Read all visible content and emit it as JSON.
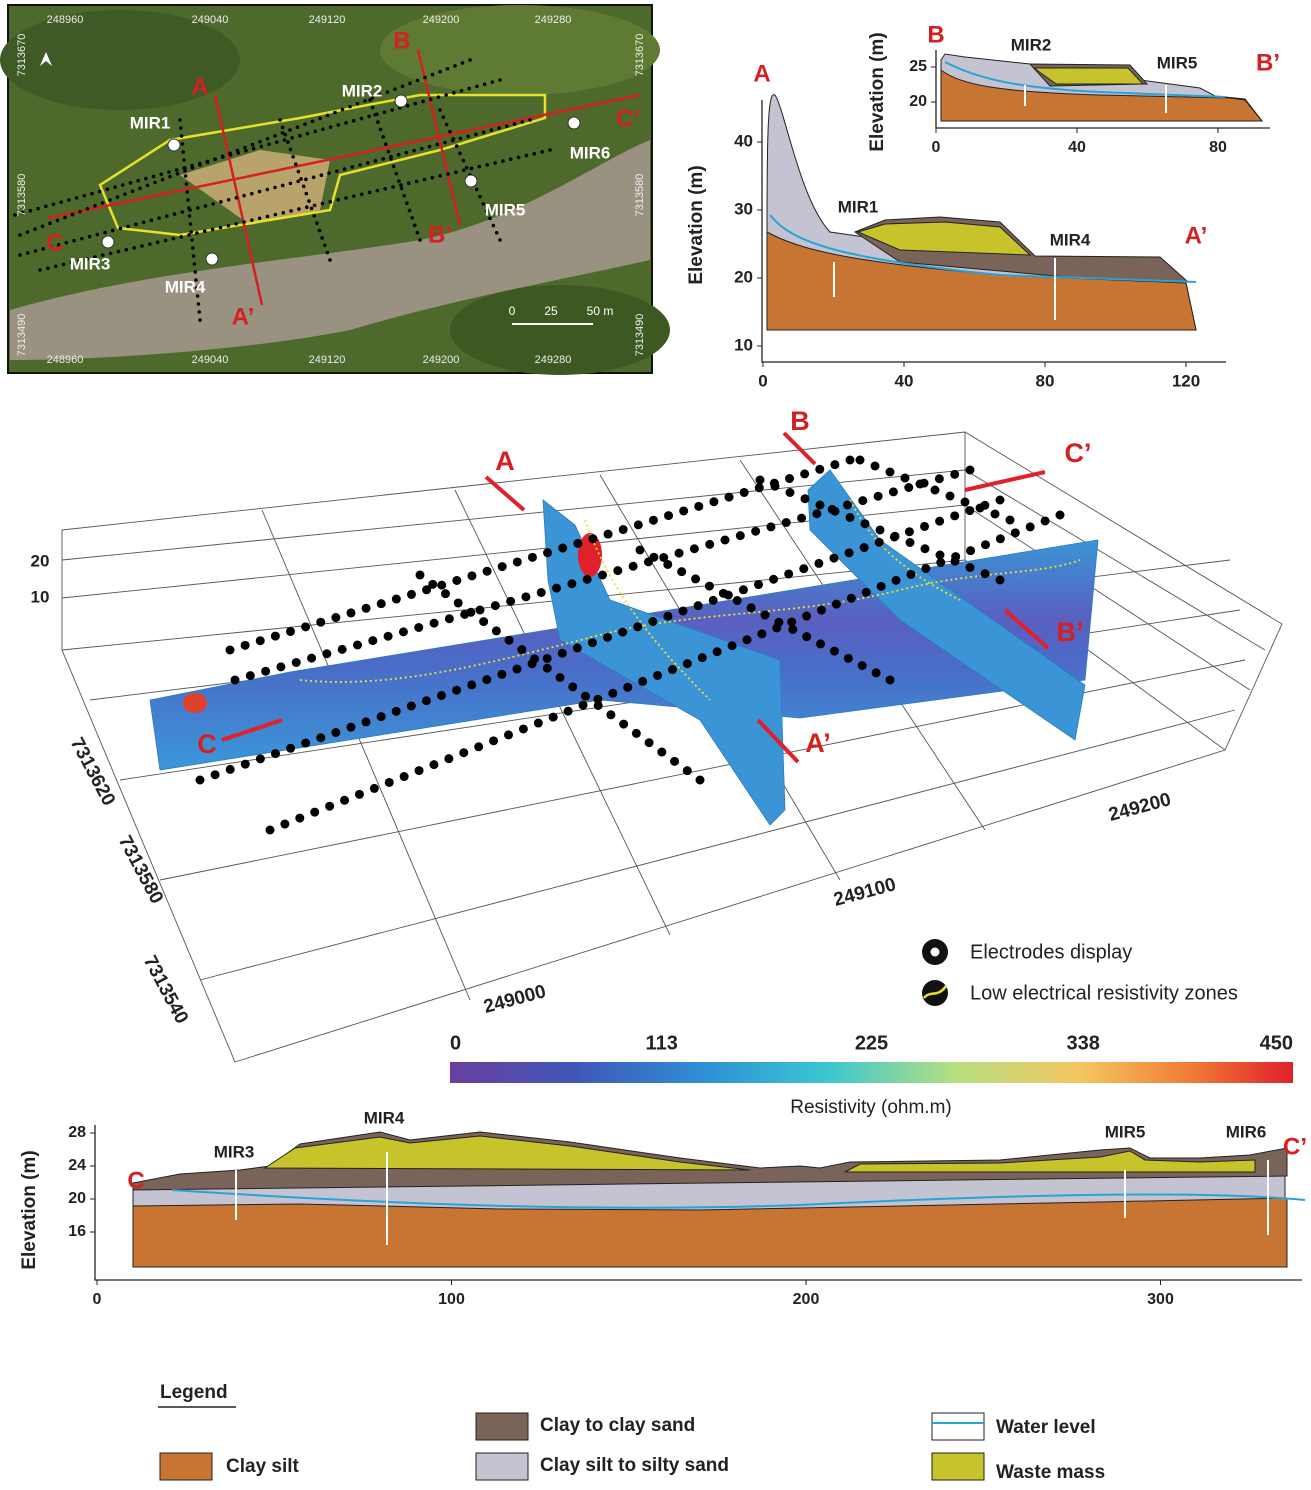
{
  "map": {
    "x_labels": [
      248960,
      249040,
      249120,
      249200,
      249280
    ],
    "y_labels": [
      7313670,
      7313580,
      7313490
    ],
    "sections": [
      "A",
      "A’",
      "B",
      "B’",
      "C",
      "C’"
    ],
    "points": [
      "MIR1",
      "MIR2",
      "MIR3",
      "MIR4",
      "MIR5",
      "MIR6"
    ],
    "scale": [
      "0",
      "25",
      "50 m"
    ]
  },
  "profile_aa": {
    "y_label": "Elevation (m)",
    "start": "A",
    "end": "A’",
    "points": [
      "MIR1",
      "MIR4"
    ],
    "xticks": [
      0,
      40,
      80,
      120
    ],
    "yticks": [
      10,
      20,
      30,
      40
    ]
  },
  "profile_bb": {
    "y_label": "Elevation (m)",
    "start": "B",
    "end": "B’",
    "points": [
      "MIR2",
      "MIR5"
    ],
    "xticks": [
      0,
      40,
      80
    ],
    "yticks": [
      20,
      25
    ]
  },
  "model_3d": {
    "sections": [
      "A",
      "B",
      "C’",
      "B’",
      "A’",
      "C"
    ],
    "z_ticks": [
      20,
      10
    ],
    "northing_ticks": [
      7313620,
      7313580,
      7313540
    ],
    "easting_ticks": [
      249000,
      249100,
      249200
    ],
    "legend": [
      "Electrodes display",
      "Low electrical resistivity zones"
    ],
    "colorbar": {
      "ticks": [
        0,
        113,
        225,
        338,
        450
      ],
      "label": "Resistivity (ohm.m)"
    }
  },
  "profile_cc": {
    "y_label": "Elevation (m)",
    "start": "C",
    "end": "C’",
    "points": [
      "MIR3",
      "MIR4",
      "MIR5",
      "MIR6"
    ],
    "xticks": [
      0,
      100,
      200,
      300
    ],
    "yticks": [
      16,
      20,
      24,
      28
    ]
  },
  "legend": {
    "title": "Legend",
    "items": [
      "Clay silt",
      "Clay to clay sand",
      "Clay silt to silty sand",
      "Water level",
      "Waste mass"
    ]
  }
}
